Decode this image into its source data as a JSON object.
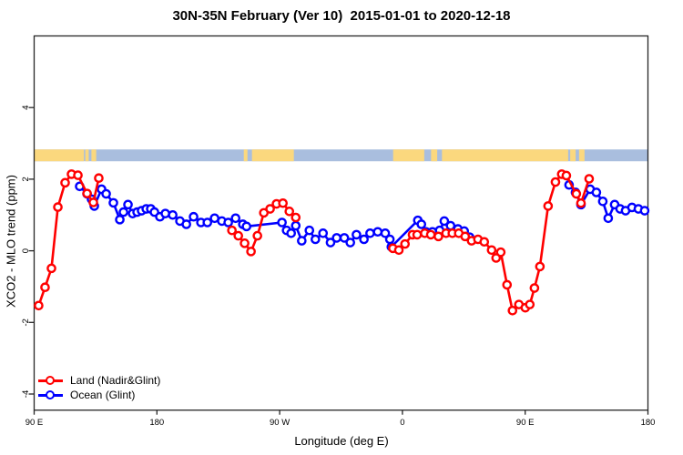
{
  "chart_data": {
    "type": "line",
    "title": "30N-35N February (Ver 10)  2015-01-01 to 2020-12-18",
    "xlabel": "Longitude (deg E)",
    "ylabel": "XCO2 - MLO trend (ppm)",
    "xlim": [
      90,
      540
    ],
    "ylim": [
      -4.45,
      6.0
    ],
    "grid": false,
    "legend_position": "bottom-left",
    "x_ticks": [
      {
        "value": 90,
        "label": "90 E"
      },
      {
        "value": 180,
        "label": "180"
      },
      {
        "value": 270,
        "label": "90 W"
      },
      {
        "value": 360,
        "label": "0"
      },
      {
        "value": 450,
        "label": "90 E"
      },
      {
        "value": 540,
        "label": "180"
      }
    ],
    "y_ticks": [
      {
        "value": -4,
        "label": "-4"
      },
      {
        "value": -2,
        "label": "-2"
      },
      {
        "value": 0,
        "label": "0"
      },
      {
        "value": 2,
        "label": "2"
      },
      {
        "value": 4,
        "label": "4"
      }
    ],
    "map_strip": {
      "description": "world map band 30N-35N drawn across plot",
      "v_top": 2.83,
      "v_bottom": 2.5,
      "ocean_color": "#a9bede",
      "land_color": "#fbd87e",
      "land_segments": [
        [
          90,
          126.5
        ],
        [
          127.5,
          130
        ],
        [
          132,
          135.5
        ],
        [
          243.7,
          246.4
        ],
        [
          249.7,
          280.4
        ],
        [
          353.2,
          376
        ],
        [
          381,
          385.5
        ],
        [
          389,
          481.5
        ],
        [
          483,
          487
        ],
        [
          489.5,
          493.5
        ]
      ]
    },
    "series": [
      {
        "name": "Ocean (Glint)",
        "color": "#0000ff",
        "segments": [
          [
            [
              123.4,
              1.8
            ],
            [
              128.8,
              1.59
            ],
            [
              132.1,
              1.44
            ],
            [
              134.1,
              1.25
            ],
            [
              139.4,
              1.72
            ],
            [
              142.8,
              1.59
            ],
            [
              148.1,
              1.34
            ],
            [
              152.8,
              0.87
            ],
            [
              155.5,
              1.08
            ],
            [
              158.8,
              1.29
            ],
            [
              162.2,
              1.04
            ],
            [
              165.5,
              1.08
            ],
            [
              168.8,
              1.12
            ],
            [
              172.2,
              1.17
            ],
            [
              175.5,
              1.17
            ],
            [
              178.2,
              1.08
            ],
            [
              182.2,
              0.95
            ],
            [
              186.2,
              1.04
            ],
            [
              191.6,
              1.0
            ],
            [
              196.9,
              0.83
            ],
            [
              201.6,
              0.74
            ],
            [
              206.9,
              0.95
            ],
            [
              212.3,
              0.79
            ],
            [
              217,
              0.79
            ],
            [
              222.3,
              0.91
            ],
            [
              227.6,
              0.83
            ],
            [
              232.3,
              0.79
            ],
            [
              237.7,
              0.91
            ],
            [
              243,
              0.74
            ],
            [
              245.7,
              0.68
            ],
            [
              271.7,
              0.79
            ],
            [
              275.1,
              0.57
            ],
            [
              278.4,
              0.49
            ],
            [
              281.8,
              0.7
            ],
            [
              286.2,
              0.28
            ],
            [
              291.8,
              0.57
            ],
            [
              296.2,
              0.32
            ],
            [
              301.8,
              0.49
            ],
            [
              307.3,
              0.23
            ],
            [
              311.8,
              0.36
            ],
            [
              317.4,
              0.36
            ],
            [
              321.8,
              0.23
            ],
            [
              326.3,
              0.45
            ],
            [
              331.8,
              0.32
            ],
            [
              336.3,
              0.49
            ],
            [
              341.9,
              0.53
            ],
            [
              347.4,
              0.49
            ],
            [
              350.8,
              0.32
            ],
            [
              351.9,
              0.11
            ],
            [
              371.3,
              0.85
            ],
            [
              373.9,
              0.74
            ],
            [
              377.3,
              0.53
            ],
            [
              382,
              0.53
            ],
            [
              387.3,
              0.57
            ],
            [
              390.7,
              0.83
            ],
            [
              395.3,
              0.7
            ],
            [
              400.7,
              0.61
            ],
            [
              405.3,
              0.55
            ],
            [
              409.3,
              0.38
            ]
          ],
          [
            [
              482.2,
              1.84
            ],
            [
              486.9,
              1.63
            ],
            [
              490.9,
              1.29
            ],
            [
              497.6,
              1.72
            ],
            [
              502.2,
              1.63
            ],
            [
              506.9,
              1.38
            ],
            [
              510.9,
              0.91
            ],
            [
              515.6,
              1.29
            ],
            [
              519.6,
              1.17
            ],
            [
              523.6,
              1.12
            ],
            [
              528.3,
              1.21
            ],
            [
              533,
              1.17
            ],
            [
              537.6,
              1.12
            ]
          ]
        ]
      },
      {
        "name": "Land (Nadir&Glint)",
        "color": "#ff0000",
        "segments": [
          [
            [
              93.3,
              -1.53
            ],
            [
              98,
              -1.02
            ],
            [
              102.7,
              -0.49
            ],
            [
              107.4,
              1.22
            ],
            [
              112.7,
              1.9
            ],
            [
              117.4,
              2.14
            ],
            [
              122.1,
              2.11
            ],
            [
              128.8,
              1.6
            ],
            [
              133.4,
              1.35
            ],
            [
              137.4,
              2.03
            ]
          ],
          [
            [
              235,
              0.57
            ],
            [
              239.7,
              0.42
            ],
            [
              244.3,
              0.21
            ],
            [
              249,
              -0.02
            ],
            [
              253.7,
              0.42
            ],
            [
              258.4,
              1.06
            ],
            [
              263,
              1.17
            ],
            [
              267.7,
              1.31
            ],
            [
              272.4,
              1.33
            ],
            [
              277.1,
              1.1
            ],
            [
              281.8,
              0.93
            ]
          ],
          [
            [
              353,
              0.07
            ],
            [
              357.4,
              0.02
            ],
            [
              361.9,
              0.19
            ],
            [
              367.4,
              0.45
            ],
            [
              370.8,
              0.45
            ],
            [
              376.4,
              0.49
            ],
            [
              380.8,
              0.45
            ],
            [
              386.4,
              0.4
            ],
            [
              392,
              0.49
            ],
            [
              396.6,
              0.49
            ],
            [
              401.3,
              0.49
            ],
            [
              406,
              0.4
            ],
            [
              410.7,
              0.28
            ],
            [
              415.4,
              0.32
            ],
            [
              420,
              0.25
            ],
            [
              425.4,
              0.02
            ],
            [
              428.7,
              -0.2
            ],
            [
              432.1,
              -0.04
            ],
            [
              436.7,
              -0.95
            ],
            [
              440.7,
              -1.67
            ],
            [
              445.4,
              -1.5
            ],
            [
              450.1,
              -1.59
            ],
            [
              453.4,
              -1.5
            ],
            [
              456.8,
              -1.04
            ],
            [
              460.8,
              -0.44
            ],
            [
              466.8,
              1.25
            ],
            [
              472.2,
              1.92
            ],
            [
              476.8,
              2.14
            ],
            [
              480.2,
              2.1
            ],
            [
              487.5,
              1.59
            ],
            [
              490.9,
              1.33
            ],
            [
              496.9,
              2.01
            ]
          ]
        ]
      }
    ],
    "legend_items": [
      {
        "label": "Land (Nadir&Glint)",
        "color": "#ff0000"
      },
      {
        "label": "Ocean (Glint)",
        "color": "#0000ff"
      }
    ]
  }
}
